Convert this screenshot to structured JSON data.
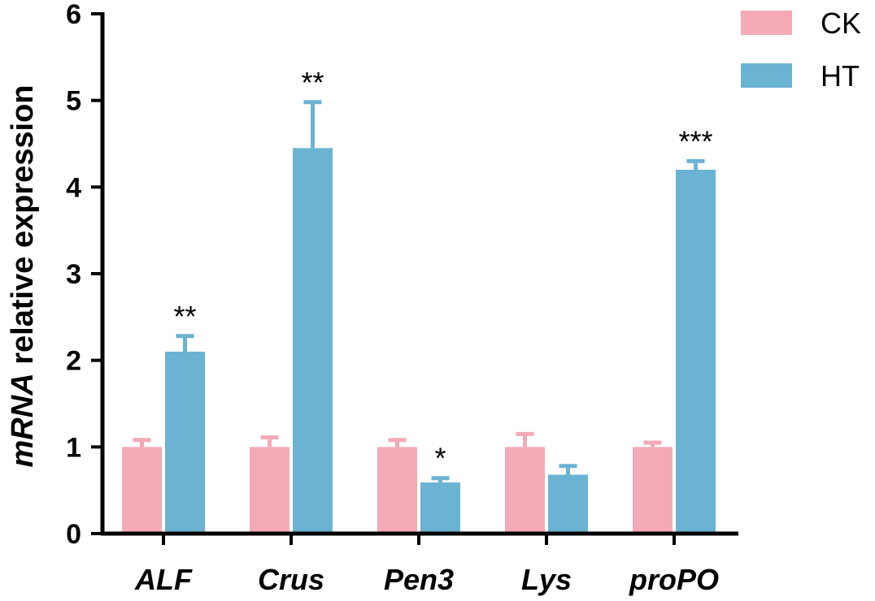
{
  "chart_data": {
    "type": "bar",
    "categories": [
      "ALF",
      "Crus",
      "Pen3",
      "Lys",
      "proPO"
    ],
    "series": [
      {
        "name": "CK",
        "color": "#F4AAB5",
        "values": [
          1.0,
          1.0,
          1.0,
          1.0,
          1.0
        ],
        "errors": [
          0.08,
          0.11,
          0.08,
          0.15,
          0.05
        ]
      },
      {
        "name": "HT",
        "color": "#6BB3D3",
        "values": [
          2.1,
          4.45,
          0.59,
          0.68,
          4.2
        ],
        "errors": [
          0.18,
          0.53,
          0.05,
          0.1,
          0.1
        ]
      }
    ],
    "significance": [
      "**",
      "**",
      "*",
      "",
      "***"
    ],
    "ylabel_italic": "mRNA",
    "ylabel_rest": " relative expression",
    "yticks": [
      "0",
      "1",
      "2",
      "3",
      "4",
      "5",
      "6"
    ],
    "ylim": [
      0,
      6
    ],
    "grid": false,
    "legend_position": "top-right"
  }
}
